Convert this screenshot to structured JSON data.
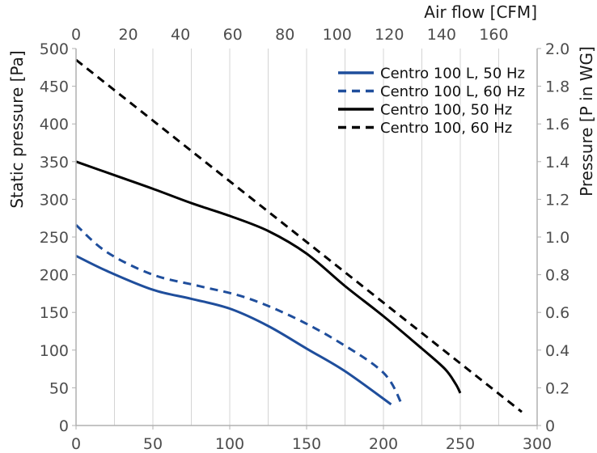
{
  "chart_data": {
    "type": "line",
    "title": "",
    "xlabel_bottom": "",
    "xlabel_top": "Air flow [CFM]",
    "ylabel_left": "Static pressure [Pa]",
    "ylabel_right": "Pressure [P in WG]",
    "xlim_bottom": [
      0,
      300
    ],
    "xlim_top": [
      0,
      176.6
    ],
    "ylim_left": [
      0,
      500
    ],
    "ylim_right": [
      0,
      2.0
    ],
    "x_ticks_bottom": [
      "0",
      "50",
      "100",
      "150",
      "200",
      "250",
      "300"
    ],
    "x_ticks_top": [
      "0",
      "20",
      "40",
      "60",
      "80",
      "100",
      "120",
      "140",
      "160"
    ],
    "y_ticks_left": [
      "0",
      "50",
      "100",
      "150",
      "200",
      "250",
      "300",
      "350",
      "400",
      "450",
      "500"
    ],
    "y_ticks_right": [
      "0",
      "0.2",
      "0.4",
      "0.6",
      "0.8",
      "1.0",
      "1.2",
      "1.4",
      "1.6",
      "1.8",
      "2.0"
    ],
    "grid": "vertical",
    "legend_position": "top-right",
    "series": [
      {
        "name": "Centro 100 L, 50 Hz",
        "color": "#1f4e9c",
        "dash": "solid",
        "x": [
          0,
          20,
          50,
          75,
          100,
          125,
          150,
          175,
          205
        ],
        "y": [
          225,
          205,
          180,
          168,
          155,
          132,
          102,
          72,
          28
        ]
      },
      {
        "name": "Centro 100 L, 60 Hz",
        "color": "#1f4e9c",
        "dash": "dashed",
        "x": [
          0,
          20,
          50,
          80,
          110,
          140,
          170,
          200,
          212
        ],
        "y": [
          266,
          230,
          200,
          185,
          170,
          145,
          112,
          70,
          28
        ]
      },
      {
        "name": "Centro 100, 50 Hz",
        "color": "#000000",
        "dash": "solid",
        "x": [
          0,
          25,
          50,
          75,
          100,
          125,
          150,
          175,
          200,
          225,
          240,
          247,
          250
        ],
        "y": [
          350,
          332,
          314,
          295,
          278,
          258,
          228,
          185,
          145,
          102,
          75,
          55,
          43
        ]
      },
      {
        "name": "Centro 100, 60 Hz",
        "color": "#000000",
        "dash": "dashed",
        "x": [
          0,
          290
        ],
        "y": [
          485,
          18
        ]
      }
    ]
  }
}
